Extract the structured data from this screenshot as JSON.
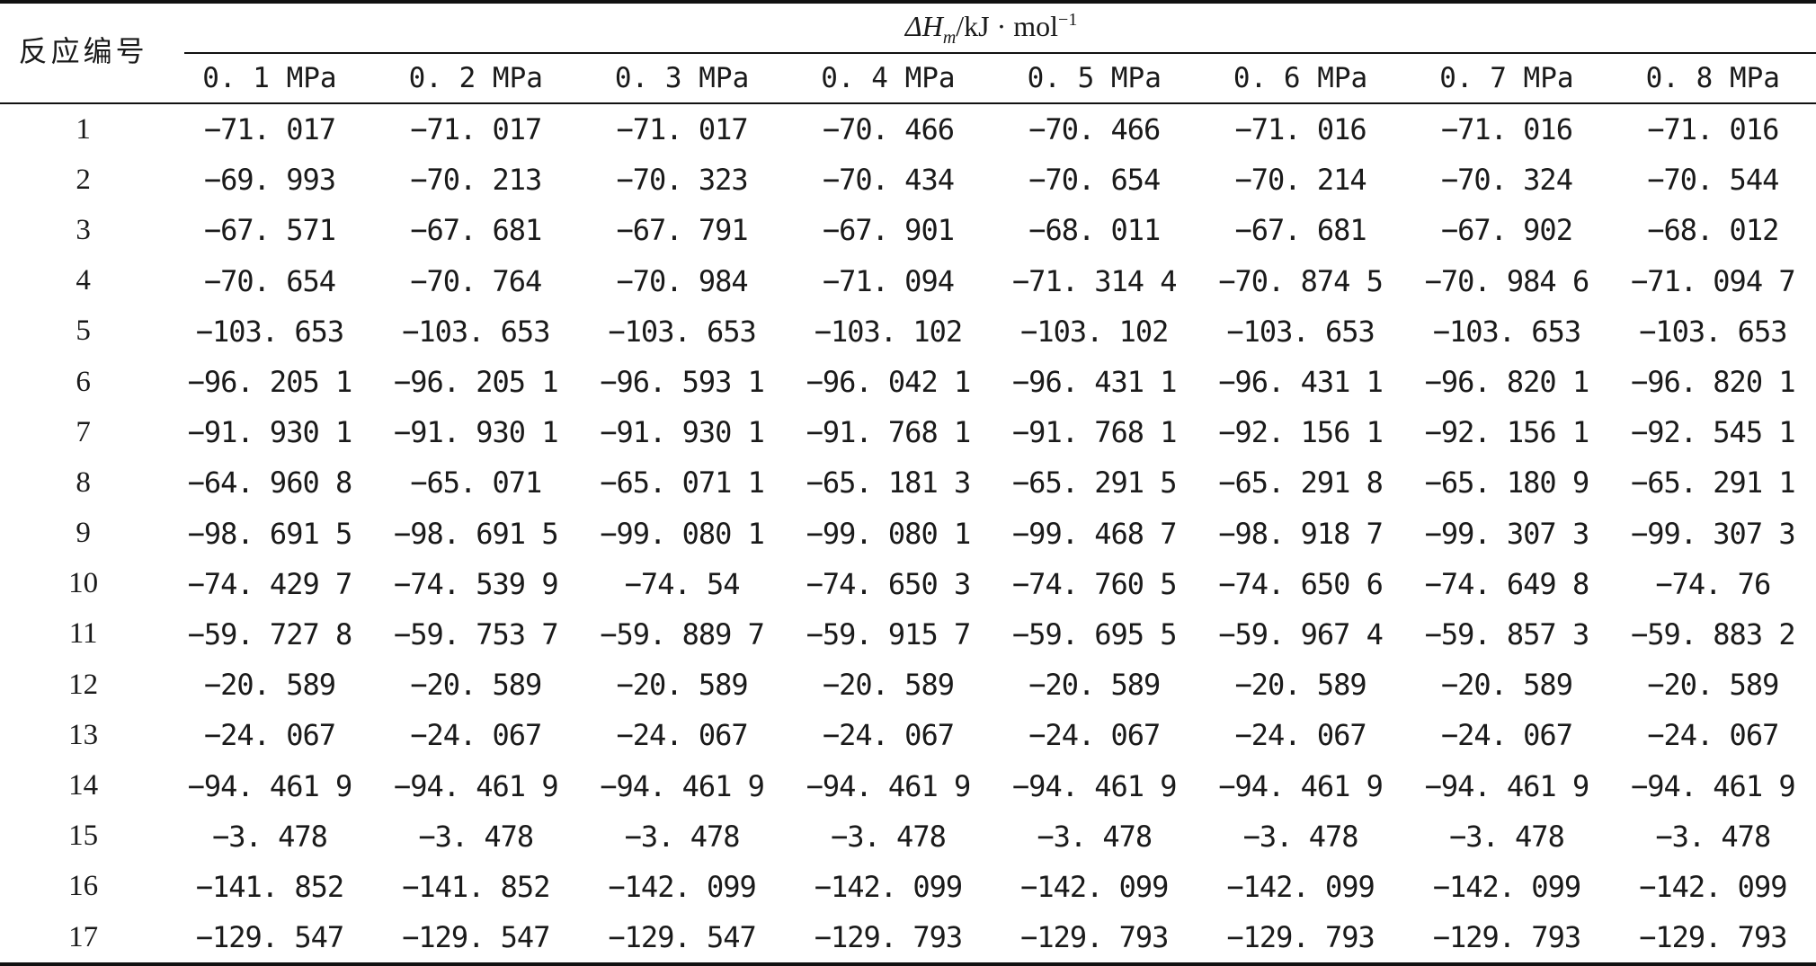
{
  "table": {
    "row_header_label": "反应编号",
    "group_header": {
      "symbol": "ΔH",
      "subscript": "m",
      "unit_text": "/kJ · mol",
      "unit_exponent": "−1"
    },
    "columns": [
      "0. 1 MPa",
      "0. 2 MPa",
      "0. 3 MPa",
      "0. 4 MPa",
      "0. 5 MPa",
      "0. 6 MPa",
      "0. 7 MPa",
      "0. 8 MPa"
    ],
    "rows": [
      {
        "id": "1",
        "values": [
          "−71. 017",
          "−71. 017",
          "−71. 017",
          "−70. 466",
          "−70. 466",
          "−71. 016",
          "−71. 016",
          "−71. 016"
        ]
      },
      {
        "id": "2",
        "values": [
          "−69. 993",
          "−70. 213",
          "−70. 323",
          "−70. 434",
          "−70. 654",
          "−70. 214",
          "−70. 324",
          "−70. 544"
        ]
      },
      {
        "id": "3",
        "values": [
          "−67. 571",
          "−67. 681",
          "−67. 791",
          "−67. 901",
          "−68. 011",
          "−67. 681",
          "−67. 902",
          "−68. 012"
        ]
      },
      {
        "id": "4",
        "values": [
          "−70. 654",
          "−70. 764",
          "−70. 984",
          "−71. 094",
          "−71. 314 4",
          "−70. 874 5",
          "−70. 984 6",
          "−71. 094 7"
        ]
      },
      {
        "id": "5",
        "values": [
          "−103. 653",
          "−103. 653",
          "−103. 653",
          "−103. 102",
          "−103. 102",
          "−103. 653",
          "−103. 653",
          "−103. 653"
        ]
      },
      {
        "id": "6",
        "values": [
          "−96. 205 1",
          "−96. 205 1",
          "−96. 593 1",
          "−96. 042 1",
          "−96. 431 1",
          "−96. 431 1",
          "−96. 820 1",
          "−96. 820 1"
        ]
      },
      {
        "id": "7",
        "values": [
          "−91. 930 1",
          "−91. 930 1",
          "−91. 930 1",
          "−91. 768 1",
          "−91. 768 1",
          "−92. 156 1",
          "−92. 156 1",
          "−92. 545 1"
        ]
      },
      {
        "id": "8",
        "values": [
          "−64. 960 8",
          "−65. 071",
          "−65. 071 1",
          "−65. 181 3",
          "−65. 291 5",
          "−65. 291 8",
          "−65. 180 9",
          "−65. 291 1"
        ]
      },
      {
        "id": "9",
        "values": [
          "−98. 691 5",
          "−98. 691 5",
          "−99. 080 1",
          "−99. 080 1",
          "−99. 468 7",
          "−98. 918 7",
          "−99. 307 3",
          "−99. 307 3"
        ]
      },
      {
        "id": "10",
        "values": [
          "−74. 429 7",
          "−74. 539 9",
          "−74. 54",
          "−74. 650 3",
          "−74. 760 5",
          "−74. 650 6",
          "−74. 649 8",
          "−74. 76"
        ]
      },
      {
        "id": "11",
        "values": [
          "−59. 727 8",
          "−59. 753 7",
          "−59. 889 7",
          "−59. 915 7",
          "−59. 695 5",
          "−59. 967 4",
          "−59. 857 3",
          "−59. 883 2"
        ]
      },
      {
        "id": "12",
        "values": [
          "−20. 589",
          "−20. 589",
          "−20. 589",
          "−20. 589",
          "−20. 589",
          "−20. 589",
          "−20. 589",
          "−20. 589"
        ]
      },
      {
        "id": "13",
        "values": [
          "−24. 067",
          "−24. 067",
          "−24. 067",
          "−24. 067",
          "−24. 067",
          "−24. 067",
          "−24. 067",
          "−24. 067"
        ]
      },
      {
        "id": "14",
        "values": [
          "−94. 461 9",
          "−94. 461 9",
          "−94. 461 9",
          "−94. 461 9",
          "−94. 461 9",
          "−94. 461 9",
          "−94. 461 9",
          "−94. 461 9"
        ]
      },
      {
        "id": "15",
        "values": [
          "−3. 478",
          "−3. 478",
          "−3. 478",
          "−3. 478",
          "−3. 478",
          "−3. 478",
          "−3. 478",
          "−3. 478"
        ]
      },
      {
        "id": "16",
        "values": [
          "−141. 852",
          "−141. 852",
          "−142. 099",
          "−142. 099",
          "−142. 099",
          "−142. 099",
          "−142. 099",
          "−142. 099"
        ]
      },
      {
        "id": "17",
        "values": [
          "−129. 547",
          "−129. 547",
          "−129. 547",
          "−129. 793",
          "−129. 793",
          "−129. 793",
          "−129. 793",
          "−129. 793"
        ]
      }
    ]
  }
}
